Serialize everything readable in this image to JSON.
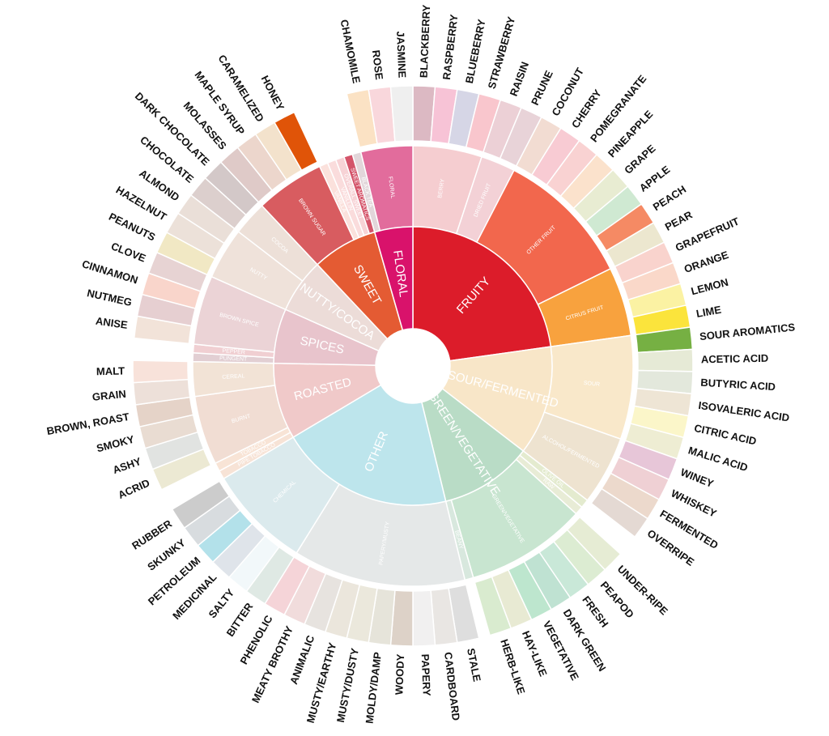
{
  "wheel": {
    "categories": [
      {
        "label": "FRUITY",
        "color": "#dc1c2a",
        "groups": [
          {
            "label": "BERRY",
            "color": "#f5cdd0",
            "leaves": [
              {
                "label": "BLACKBERRY",
                "color": "#dcb9c3"
              },
              {
                "label": "RASPBERRY",
                "color": "#f7c3d6"
              },
              {
                "label": "BLUEBERRY",
                "color": "#d6d6e6"
              },
              {
                "label": "STRAWBERRY",
                "color": "#f9c6cd"
              }
            ]
          },
          {
            "label": "DRIED FRUIT",
            "color": "#f3d1d6",
            "leaves": [
              {
                "label": "RAISIN",
                "color": "#ecd0d6"
              },
              {
                "label": "PRUNE",
                "color": "#e8d3d8"
              }
            ]
          },
          {
            "label": "OTHER FRUIT",
            "color": "#f2674d",
            "leaves": [
              {
                "label": "COCONUT",
                "color": "#f2dcd2"
              },
              {
                "label": "CHERRY",
                "color": "#f8cbd3"
              },
              {
                "label": "POMEGRANATE",
                "color": "#f9d2d2"
              },
              {
                "label": "PINEAPPLE",
                "color": "#fbe2cc"
              },
              {
                "label": "GRAPE",
                "color": "#e8ecd2"
              },
              {
                "label": "APPLE",
                "color": "#cfe9d2"
              },
              {
                "label": "PEACH",
                "color": "#f58a64"
              },
              {
                "label": "PEAR",
                "color": "#ece7cf"
              }
            ]
          },
          {
            "label": "CITRUS FRUIT",
            "color": "#f8a23e",
            "leaves": [
              {
                "label": "GRAPEFRUIT",
                "color": "#f9d3cd"
              },
              {
                "label": "ORANGE",
                "color": "#fad8c9"
              },
              {
                "label": "LEMON",
                "color": "#fbf2a3"
              },
              {
                "label": "LIME",
                "color": "#fbe43c"
              }
            ]
          }
        ]
      },
      {
        "label": "SOUR/FERMENTED",
        "color": "#f8e6c8",
        "groups": [
          {
            "label": "SOUR",
            "color": "#f9e8ca",
            "leaves": [
              {
                "label": "SOUR AROMATICS",
                "color": "#76b043"
              },
              {
                "label": "ACETIC ACID",
                "color": "#e6ead6"
              },
              {
                "label": "BUTYRIC ACID",
                "color": "#e3e8dc"
              },
              {
                "label": "ISOVALERIC ACID",
                "color": "#eee5d5"
              },
              {
                "label": "CITRIC ACID",
                "color": "#fbf6c9"
              },
              {
                "label": "MALIC ACID",
                "color": "#eeedd3"
              }
            ]
          },
          {
            "label": "ALCOHOL/FERMENTED",
            "color": "#eee3d0",
            "leaves": [
              {
                "label": "WINEY",
                "color": "#e7c6d8"
              },
              {
                "label": "WHISKEY",
                "color": "#efd0d4"
              },
              {
                "label": "FERMENTED",
                "color": "#ecd9cc"
              },
              {
                "label": "OVERRIPE",
                "color": "#e4d9d3"
              }
            ]
          }
        ]
      },
      {
        "label": "GREEN/VEGETATIVE",
        "color": "#b9dcc6",
        "groups": [
          {
            "label": "OLIVE OIL",
            "color": "#e4ebcf",
            "leaves": []
          },
          {
            "label": "RAW",
            "color": "#e8ecd6",
            "leaves": []
          },
          {
            "label": "GREEN/VEGETATIVE",
            "color": "#c8e5d0",
            "leaves": [
              {
                "label": "UNDER-RIPE",
                "color": "#e6ecd4"
              },
              {
                "label": "PEAPOD",
                "color": "#dcecd2"
              },
              {
                "label": "FRESH",
                "color": "#c9e8d8"
              },
              {
                "label": "DARK GREEN",
                "color": "#bfe2d2"
              },
              {
                "label": "VEGETATIVE",
                "color": "#bde6ce"
              },
              {
                "label": "HAY-LIKE",
                "color": "#e8ead3"
              },
              {
                "label": "HERB-LIKE",
                "color": "#d9ebcf"
              }
            ]
          },
          {
            "label": "BEANY",
            "color": "#d8e8de",
            "leaves": []
          }
        ]
      },
      {
        "label": "OTHER",
        "color": "#bde5ec",
        "groups": [
          {
            "label": "PAPERY/MUSTY",
            "color": "#e5e8e8",
            "leaves": [
              {
                "label": "STALE",
                "color": "#dedede"
              },
              {
                "label": "CARDBOARD",
                "color": "#e9e6e3"
              },
              {
                "label": "PAPERY",
                "color": "#f1f0f0"
              },
              {
                "label": "WOODY",
                "color": "#ddd2c8"
              },
              {
                "label": "MOLDY/DAMP",
                "color": "#e6e4da"
              },
              {
                "label": "MUSTY/DUSTY",
                "color": "#ebe8dc"
              },
              {
                "label": "MUSTY/EARTHY",
                "color": "#ebe6dc"
              },
              {
                "label": "ANIMALIC",
                "color": "#e7e3df"
              },
              {
                "label": "MEATY BROTHY",
                "color": "#f1dcdc"
              },
              {
                "label": "PHENOLIC",
                "color": "#f5d4d8"
              }
            ]
          },
          {
            "label": "CHEMICAL",
            "color": "#dbeaed",
            "leaves": [
              {
                "label": "BITTER",
                "color": "#dfe9e4"
              },
              {
                "label": "SALTY",
                "color": "#f2f8fa"
              },
              {
                "label": "MEDICINAL",
                "color": "#dfe4ea"
              },
              {
                "label": "PETROLEUM",
                "color": "#b3e1ea"
              },
              {
                "label": "SKUNKY",
                "color": "#d8dcdf"
              },
              {
                "label": "RUBBER",
                "color": "#cccccc"
              }
            ]
          }
        ]
      },
      {
        "label": "ROASTED",
        "color": "#f0c9c9",
        "groups": [
          {
            "label": "PIPE TOBACCO",
            "color": "#f7e3d6",
            "leaves": []
          },
          {
            "label": "TOBACCO",
            "color": "#f8e4d6",
            "leaves": []
          },
          {
            "label": "BURNT",
            "color": "#f1ddd3",
            "leaves": [
              {
                "label": "ACRID",
                "color": "#ece9d3"
              },
              {
                "label": "ASHY",
                "color": "#e1e3e1"
              },
              {
                "label": "SMOKY",
                "color": "#e9dcd2"
              },
              {
                "label": "BROWN, ROAST",
                "color": "#e5d3c8"
              }
            ]
          },
          {
            "label": "CEREAL",
            "color": "#f2e3d6",
            "leaves": [
              {
                "label": "GRAIN",
                "color": "#ede0d9"
              },
              {
                "label": "MALT",
                "color": "#f8e2da"
              }
            ]
          }
        ]
      },
      {
        "label": "SPICES",
        "color": "#e8c4cc",
        "groups": [
          {
            "label": "PUNGENT",
            "color": "#e2cfd3",
            "leaves": []
          },
          {
            "label": "PEPPER",
            "color": "#f0cfd2",
            "leaves": []
          },
          {
            "label": "BROWN SPICE",
            "color": "#ebd3d6",
            "leaves": [
              {
                "label": "ANISE",
                "color": "#f2e3d9"
              },
              {
                "label": "NUTMEG",
                "color": "#e6cfd1"
              },
              {
                "label": "CINNAMON",
                "color": "#f9d5cb"
              },
              {
                "label": "CLOVE",
                "color": "#e7d3d3"
              }
            ]
          }
        ]
      },
      {
        "label": "NUTTY/COCOA",
        "color": "#ecdcd8",
        "groups": [
          {
            "label": "NUTTY",
            "color": "#efe2da",
            "leaves": [
              {
                "label": "PEANUTS",
                "color": "#f1e8c4"
              },
              {
                "label": "HAZELNUT",
                "color": "#ece1d9"
              },
              {
                "label": "ALMOND",
                "color": "#eadfd8"
              }
            ]
          },
          {
            "label": "COCOA",
            "color": "#ede0d8",
            "leaves": [
              {
                "label": "CHOCOLATE",
                "color": "#dccfcd"
              },
              {
                "label": "DARK CHOCOLATE",
                "color": "#d3c8c8"
              }
            ]
          }
        ]
      },
      {
        "label": "SWEET",
        "color": "#e45b33",
        "groups": [
          {
            "label": "BROWN SUGAR",
            "color": "#d85c60",
            "leaves": [
              {
                "label": "MOLASSES",
                "color": "#dfcac8"
              },
              {
                "label": "MAPLE SYRUP",
                "color": "#ecd6cc"
              },
              {
                "label": "CARAMELIZED",
                "color": "#f3e2cc"
              },
              {
                "label": "HONEY",
                "color": "#e05408"
              }
            ]
          },
          {
            "label": "VANILLA",
            "color": "#fbe1dc",
            "leaves": []
          },
          {
            "label": "VANILLIN",
            "color": "#fadcdc",
            "leaves": []
          },
          {
            "label": "OVERALL SWEET",
            "color": "#f7d3d6",
            "leaves": []
          },
          {
            "label": "SWEET AROMATICS",
            "color": "#d4546a",
            "leaves": []
          }
        ]
      },
      {
        "label": "FLORAL",
        "color": "#d9126b",
        "groups": [
          {
            "label": "BLACK TEA",
            "color": "#e2d6da",
            "leaves": []
          },
          {
            "label": "FLORAL",
            "color": "#e26c9c",
            "leaves": [
              {
                "label": "CHAMOMILE",
                "color": "#fbe2c4"
              },
              {
                "label": "ROSE",
                "color": "#f9d7dc"
              },
              {
                "label": "JASMINE",
                "color": "#efefef"
              }
            ]
          }
        ]
      }
    ]
  }
}
